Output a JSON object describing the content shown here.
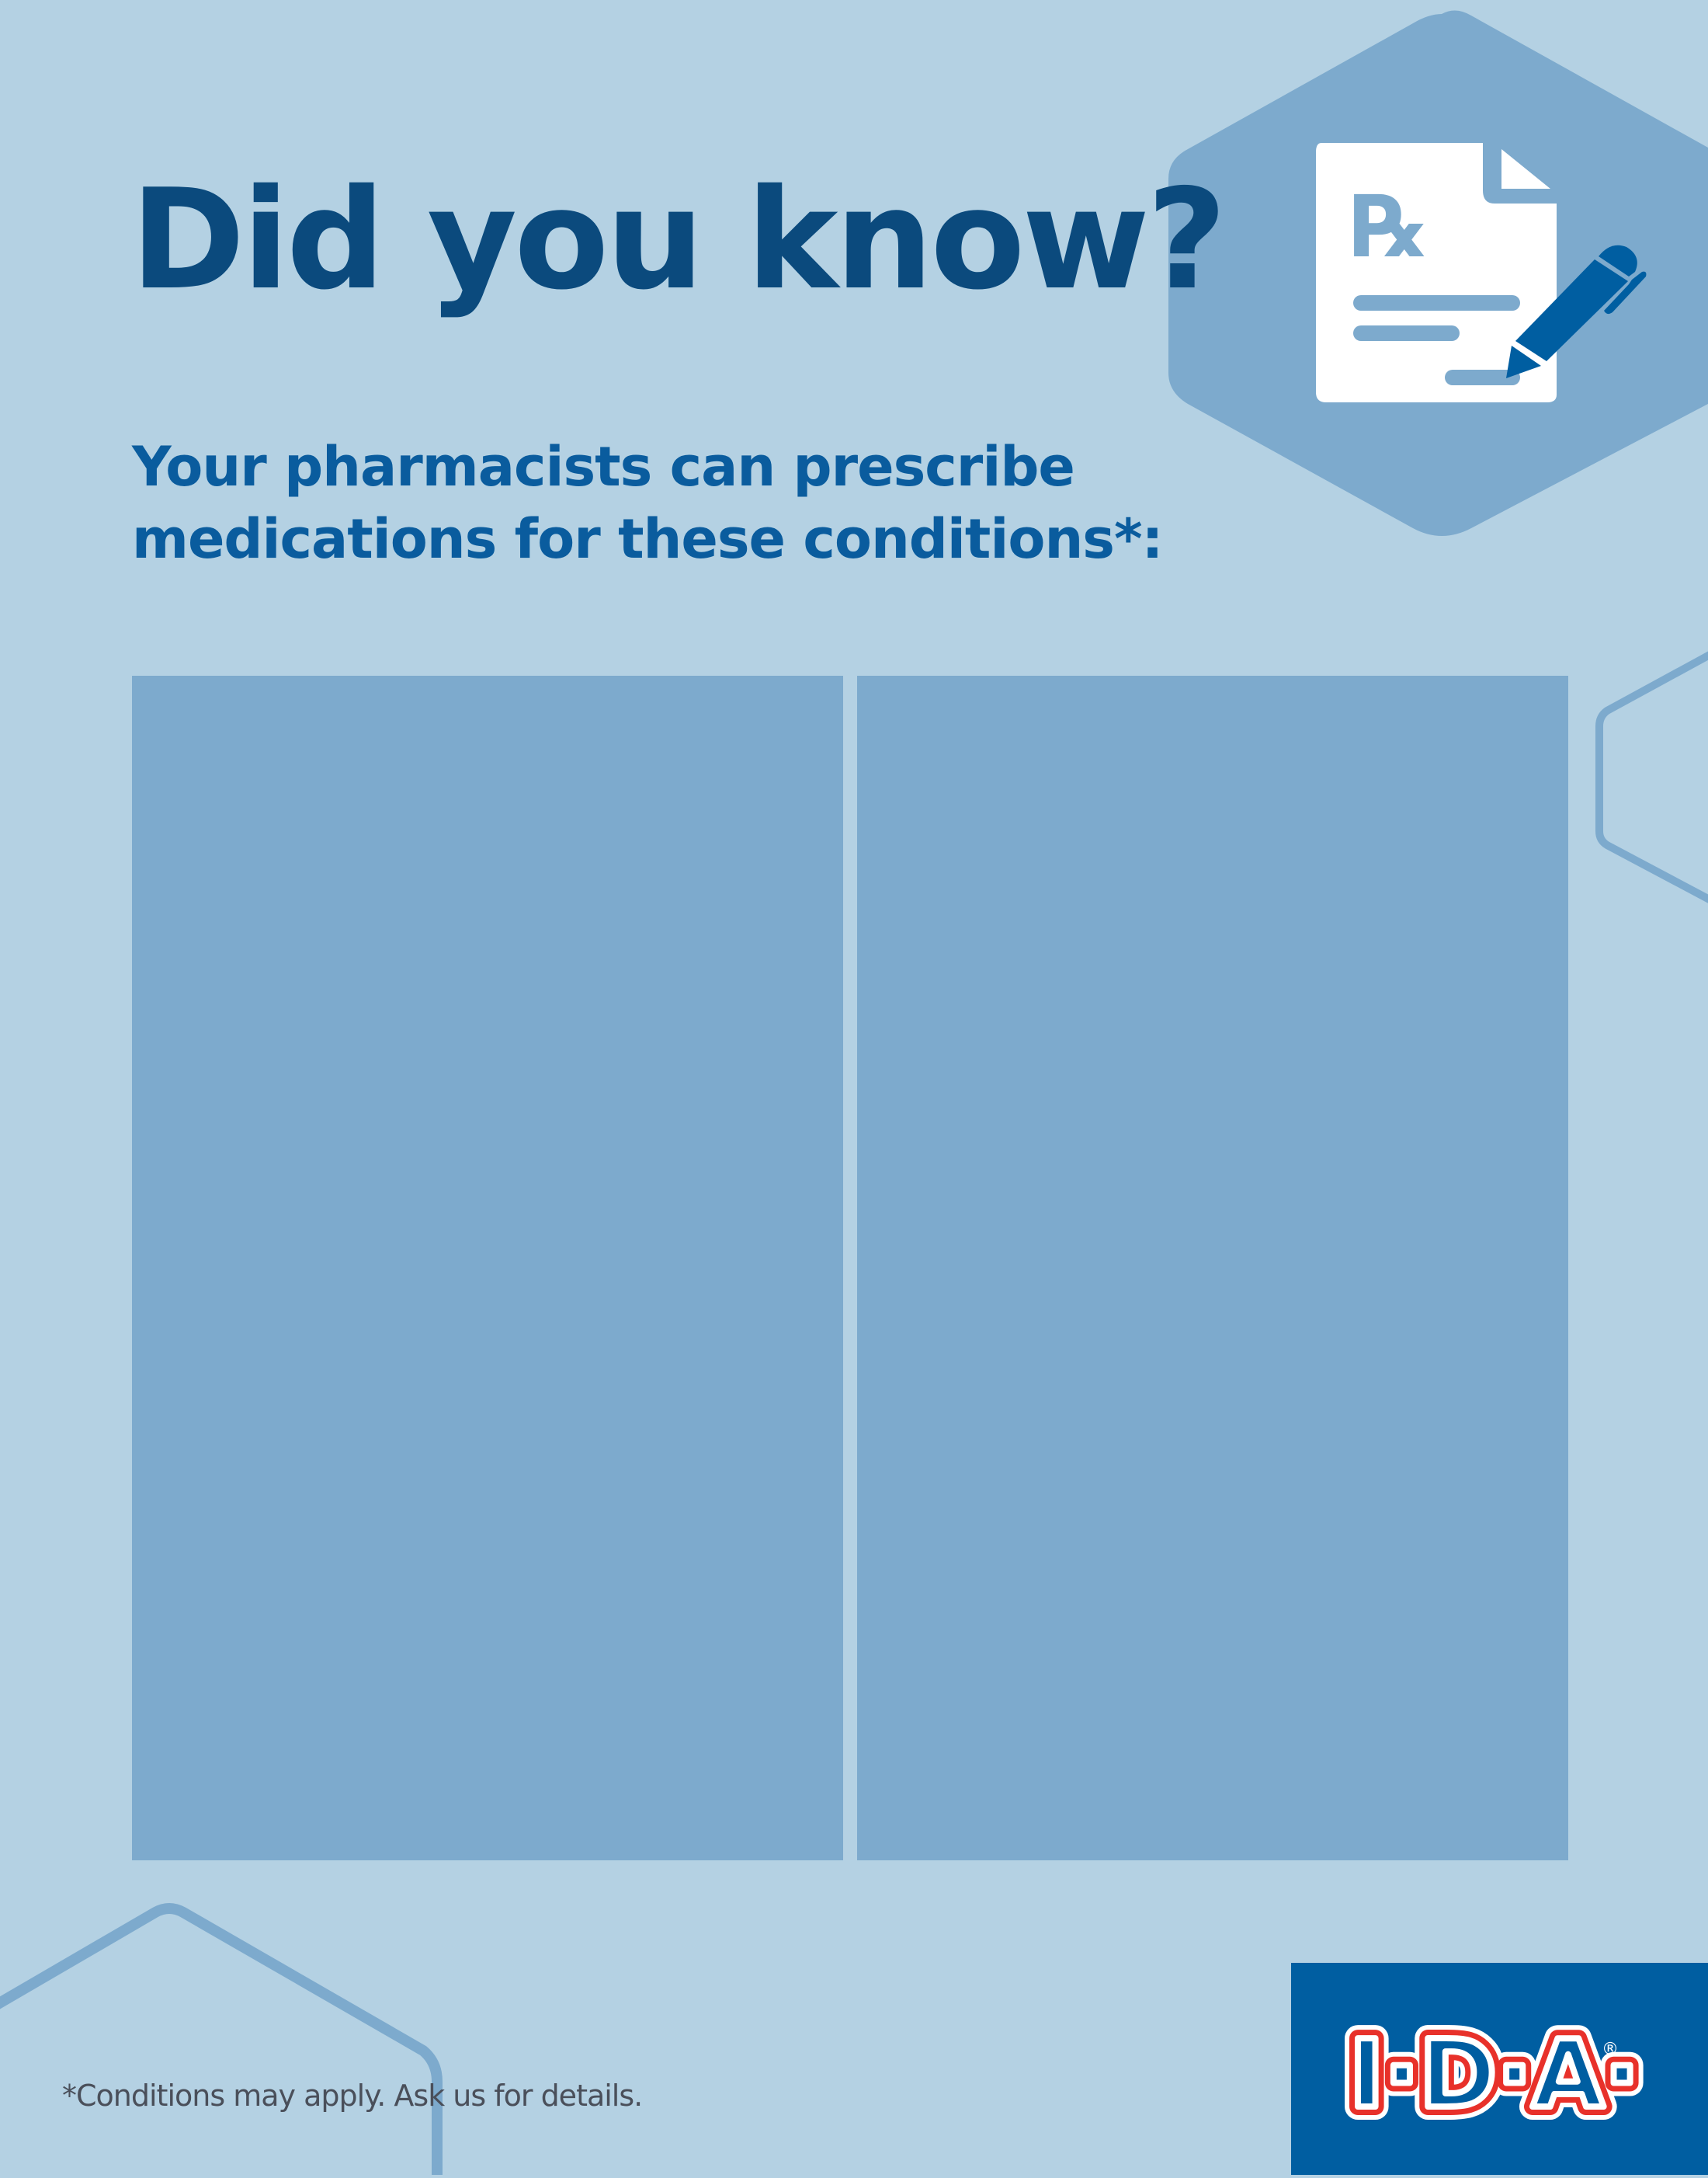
{
  "header": {
    "title": "Did you know?",
    "subtitle_line1": "Your pharmacists can prescribe",
    "subtitle_line2": "medications for these conditions*:"
  },
  "panels": [
    {
      "name": "left-panel"
    },
    {
      "name": "right-panel"
    }
  ],
  "icons": {
    "hero": "prescription-document-with-pen-icon"
  },
  "footer": {
    "footnote": "*Conditions may apply. Ask us for details.",
    "logo_text": "I·D·A®"
  },
  "colors": {
    "background": "#b4d1e3",
    "panel": "#7daacd",
    "title": "#0b4a7d",
    "subtitle": "#0a5c9e",
    "brand_blue": "#005ea1",
    "brand_red": "#e8312a"
  }
}
